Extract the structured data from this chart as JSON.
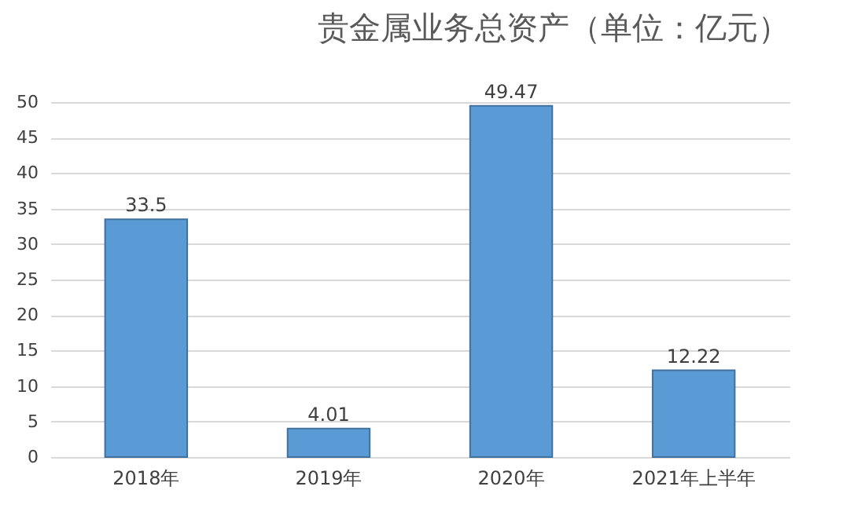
{
  "chart_data": {
    "type": "bar",
    "title": "贵金属业务总资产（单位：亿元）",
    "categories": [
      "2018年",
      "2019年",
      "2020年",
      "2021年上半年"
    ],
    "values": [
      33.5,
      4.01,
      49.47,
      12.22
    ],
    "color": "#5b9bd5",
    "ylim": [
      0,
      50
    ],
    "yticks": [
      0,
      5,
      10,
      15,
      20,
      25,
      30,
      35,
      40,
      45,
      50
    ],
    "grid": true,
    "data_labels": true
  }
}
